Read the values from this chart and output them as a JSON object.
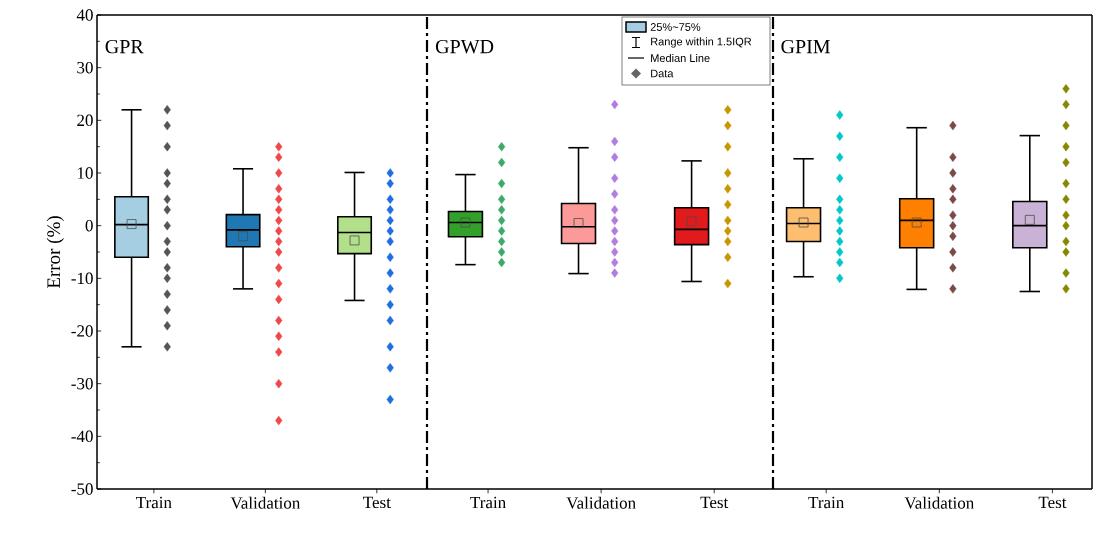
{
  "chart_data": [
    {
      "type": "box",
      "title": "GPR",
      "ylabel": "Error (%)",
      "categories": [
        "Train",
        "Validation",
        "Test"
      ],
      "boxes": [
        {
          "low": -23,
          "q1": -6,
          "median": 0.2,
          "q3": 5.5,
          "high": 22,
          "mean": 0.3
        },
        {
          "low": -12,
          "q1": -4,
          "median": -0.8,
          "q3": 2.1,
          "high": 10.8,
          "mean": -2
        },
        {
          "low": -14.2,
          "q1": -5.3,
          "median": -1.3,
          "q3": 1.7,
          "high": 10.1,
          "mean": -2.8
        }
      ],
      "colors": [
        "#a6cee3",
        "#1f78b4",
        "#b2df8a"
      ],
      "series": [
        {
          "type": "scatter",
          "color": "#555555",
          "x": [
            "Train",
            "Train",
            "Train",
            "Train",
            "Train",
            "Train",
            "Train",
            "Train",
            "Train",
            "Train",
            "Train",
            "Train",
            "Train",
            "Train",
            "Train",
            "Train"
          ],
          "values": [
            22,
            19,
            15,
            10,
            8,
            5,
            3,
            0,
            -3,
            -5,
            -8,
            -10,
            -13,
            -16,
            -19,
            -23
          ]
        },
        {
          "type": "scatter",
          "color": "#f04848",
          "x": [
            "Validation",
            "Validation",
            "Validation",
            "Validation",
            "Validation",
            "Validation",
            "Validation",
            "Validation",
            "Validation",
            "Validation",
            "Validation",
            "Validation",
            "Validation",
            "Validation",
            "Validation",
            "Validation",
            "Validation",
            "Validation"
          ],
          "values": [
            15,
            13,
            10,
            7,
            5,
            3,
            1,
            -1,
            -3,
            -5,
            -8,
            -11,
            -14,
            -18,
            -21,
            -24,
            -30,
            -37
          ]
        },
        {
          "type": "scatter",
          "color": "#1f6fe0",
          "x": [
            "Test",
            "Test",
            "Test",
            "Test",
            "Test",
            "Test",
            "Test",
            "Test",
            "Test",
            "Test",
            "Test",
            "Test",
            "Test",
            "Test",
            "Test"
          ],
          "values": [
            10,
            8,
            5,
            3,
            1,
            -1,
            -3,
            -6,
            -9,
            -12,
            -15,
            -18,
            -23,
            -27,
            -33
          ]
        }
      ],
      "marker": "diamond",
      "ylim": [
        -50,
        40
      ],
      "yticks": [
        -50,
        -40,
        -30,
        -20,
        -10,
        0,
        10,
        20,
        30,
        40
      ]
    },
    {
      "type": "box",
      "title": "GPWD",
      "categories": [
        "Train",
        "Validation",
        "Test"
      ],
      "boxes": [
        {
          "low": -7.4,
          "q1": -2.1,
          "median": 0.6,
          "q3": 2.7,
          "high": 9.7,
          "mean": 0.6
        },
        {
          "low": -9.1,
          "q1": -3.4,
          "median": -0.2,
          "q3": 4.2,
          "high": 14.8,
          "mean": 0.5
        },
        {
          "low": -10.6,
          "q1": -3.6,
          "median": -0.7,
          "q3": 3.4,
          "high": 12.3,
          "mean": 0.8
        }
      ],
      "colors": [
        "#33a02c",
        "#fb9a99",
        "#e31a1c"
      ],
      "series": [
        {
          "type": "scatter",
          "color": "#3aaa6a",
          "x": [
            "Train",
            "Train",
            "Train",
            "Train",
            "Train",
            "Train",
            "Train",
            "Train",
            "Train",
            "Train"
          ],
          "values": [
            15,
            12,
            8,
            5,
            3,
            1,
            -1,
            -3,
            -5,
            -7
          ]
        },
        {
          "type": "scatter",
          "color": "#b07ee0",
          "x": [
            "Validation",
            "Validation",
            "Validation",
            "Validation",
            "Validation",
            "Validation",
            "Validation",
            "Validation",
            "Validation",
            "Validation",
            "Validation",
            "Validation"
          ],
          "values": [
            23,
            16,
            13,
            9,
            6,
            3,
            1,
            -1,
            -3,
            -5,
            -7,
            -9
          ]
        },
        {
          "type": "scatter",
          "color": "#c89600",
          "x": [
            "Test",
            "Test",
            "Test",
            "Test",
            "Test",
            "Test",
            "Test",
            "Test",
            "Test",
            "Test",
            "Test"
          ],
          "values": [
            22,
            19,
            15,
            10,
            7,
            4,
            1,
            -1,
            -3,
            -6,
            -11
          ]
        }
      ],
      "marker": "diamond",
      "ylim": [
        -50,
        40
      ],
      "yticks": [
        -50,
        -40,
        -30,
        -20,
        -10,
        0,
        10,
        20,
        30,
        40
      ],
      "tick_labels": "x",
      "annotations": [
        "25%~75%",
        "Range within 1.5IQR",
        "Median Line",
        "Data"
      ]
    },
    {
      "type": "box",
      "title": "GPIM",
      "categories": [
        "Train",
        "Validation",
        "Test"
      ],
      "boxes": [
        {
          "low": -9.7,
          "q1": -3,
          "median": 0.4,
          "q3": 3.4,
          "high": 12.7,
          "mean": 0.6
        },
        {
          "low": -12.1,
          "q1": -4.2,
          "median": 1,
          "q3": 5.1,
          "high": 18.6,
          "mean": 0.6
        },
        {
          "low": -12.5,
          "q1": -4.2,
          "median": 0,
          "q3": 4.6,
          "high": 17.1,
          "mean": 1.1
        }
      ],
      "colors": [
        "#fdbf6f",
        "#ff7f00",
        "#cab2d6"
      ],
      "series": [
        {
          "type": "scatter",
          "color": "#00c8cc",
          "x": [
            "Train",
            "Train",
            "Train",
            "Train",
            "Train",
            "Train",
            "Train",
            "Train",
            "Train",
            "Train",
            "Train",
            "Train"
          ],
          "values": [
            21,
            17,
            13,
            9,
            5,
            3,
            1,
            -1,
            -3,
            -5,
            -7,
            -10
          ]
        },
        {
          "type": "scatter",
          "color": "#7a4a48",
          "x": [
            "Validation",
            "Validation",
            "Validation",
            "Validation",
            "Validation",
            "Validation",
            "Validation",
            "Validation",
            "Validation",
            "Validation",
            "Validation"
          ],
          "values": [
            19,
            13,
            10,
            7,
            5,
            2,
            0,
            -2,
            -5,
            -8,
            -12
          ]
        },
        {
          "type": "scatter",
          "color": "#888800",
          "x": [
            "Test",
            "Test",
            "Test",
            "Test",
            "Test",
            "Test",
            "Test",
            "Test",
            "Test",
            "Test",
            "Test",
            "Test",
            "Test"
          ],
          "values": [
            26,
            23,
            19,
            15,
            12,
            8,
            5,
            2,
            0,
            -3,
            -5,
            -9,
            -12
          ]
        }
      ],
      "marker": "diamond",
      "ylim": [
        -50,
        40
      ],
      "yticks": [
        -50,
        -40,
        -30,
        -20,
        -10,
        0,
        10,
        20,
        30,
        40
      ],
      "tick_labels": "x"
    }
  ]
}
